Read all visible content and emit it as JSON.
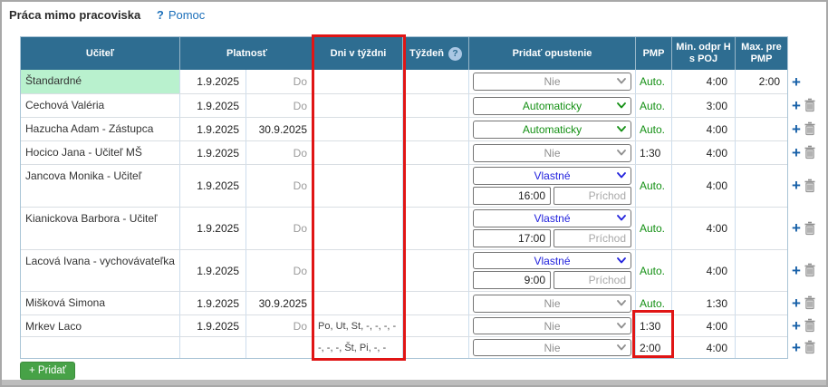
{
  "window": {
    "title": "Práca mimo pracoviska",
    "help_icon": "?",
    "help_link": "Pomoc"
  },
  "table": {
    "headers": {
      "teacher": "Učiteľ",
      "validity": "Platnosť",
      "days": "Dni v týždni",
      "week": "Týždeň",
      "week_help": "?",
      "leave": "Pridať opustenie",
      "pmp": "PMP",
      "min_h": "Min. odpr H s POJ",
      "max_pmp": "Max. pre PMP"
    },
    "rows": [
      {
        "teacher": "Štandardné",
        "highlight": true,
        "from": "1.9.2025",
        "to": "",
        "to_placeholder": "Do",
        "days": "",
        "week": "",
        "leave": {
          "value": "Nie",
          "color": "gray",
          "time": "",
          "time_placeholder": ""
        },
        "pmp": "Auto.",
        "pmp_auto": true,
        "min": "4:00",
        "max": "2:00",
        "can_add": true,
        "can_delete": false,
        "height": 26
      },
      {
        "teacher": "Cechová Valéria",
        "highlight": false,
        "from": "1.9.2025",
        "to": "",
        "to_placeholder": "Do",
        "days": "",
        "week": "",
        "leave": {
          "value": "Automaticky",
          "color": "green",
          "time": "",
          "time_placeholder": ""
        },
        "pmp": "Auto.",
        "pmp_auto": true,
        "min": "3:00",
        "max": "",
        "can_add": true,
        "can_delete": true,
        "height": 26
      },
      {
        "teacher": "Hazucha Adam - Zástupca",
        "highlight": false,
        "from": "1.9.2025",
        "to": "30.9.2025",
        "to_placeholder": "",
        "days": "",
        "week": "",
        "leave": {
          "value": "Automaticky",
          "color": "green",
          "time": "",
          "time_placeholder": ""
        },
        "pmp": "Auto.",
        "pmp_auto": true,
        "min": "4:00",
        "max": "",
        "can_add": true,
        "can_delete": true,
        "height": 26
      },
      {
        "teacher": "Hocico Jana - Učiteľ MŠ",
        "highlight": false,
        "from": "1.9.2025",
        "to": "",
        "to_placeholder": "Do",
        "days": "",
        "week": "",
        "leave": {
          "value": "Nie",
          "color": "gray",
          "time": "",
          "time_placeholder": ""
        },
        "pmp": "1:30",
        "pmp_auto": false,
        "min": "4:00",
        "max": "",
        "can_add": true,
        "can_delete": true,
        "height": 26
      },
      {
        "teacher": "Jancova Monika - Učiteľ",
        "highlight": false,
        "from": "1.9.2025",
        "to": "",
        "to_placeholder": "Do",
        "days": "",
        "week": "",
        "leave": {
          "value": "Vlastné",
          "color": "blue",
          "time": "16:00",
          "time_placeholder": "Príchod"
        },
        "pmp": "Auto.",
        "pmp_auto": true,
        "min": "4:00",
        "max": "",
        "can_add": true,
        "can_delete": true,
        "height": 47
      },
      {
        "teacher": "Kianickova Barbora - Učiteľ",
        "highlight": false,
        "from": "1.9.2025",
        "to": "",
        "to_placeholder": "Do",
        "days": "",
        "week": "",
        "leave": {
          "value": "Vlastné",
          "color": "blue",
          "time": "17:00",
          "time_placeholder": "Príchod"
        },
        "pmp": "Auto.",
        "pmp_auto": true,
        "min": "4:00",
        "max": "",
        "can_add": true,
        "can_delete": true,
        "height": 47
      },
      {
        "teacher": "Lacová Ivana - vychovávateľka",
        "highlight": false,
        "from": "1.9.2025",
        "to": "",
        "to_placeholder": "Do",
        "days": "",
        "week": "",
        "leave": {
          "value": "Vlastné",
          "color": "blue",
          "time": "9:00",
          "time_placeholder": "Príchod"
        },
        "pmp": "Auto.",
        "pmp_auto": true,
        "min": "4:00",
        "max": "",
        "can_add": true,
        "can_delete": true,
        "height": 46
      },
      {
        "teacher": "Mišková Simona",
        "highlight": false,
        "from": "1.9.2025",
        "to": "30.9.2025",
        "to_placeholder": "",
        "days": "",
        "week": "",
        "leave": {
          "value": "Nie",
          "color": "gray",
          "time": "",
          "time_placeholder": ""
        },
        "pmp": "Auto.",
        "pmp_auto": true,
        "min": "1:30",
        "max": "",
        "can_add": true,
        "can_delete": true,
        "height": 26
      },
      {
        "teacher": "Mrkev Laco",
        "highlight": false,
        "from": "1.9.2025",
        "to": "",
        "to_placeholder": "Do",
        "days": "Po, Ut, St, -, -, -, -",
        "week": "",
        "leave": {
          "value": "Nie",
          "color": "gray",
          "time": "",
          "time_placeholder": ""
        },
        "pmp": "1:30",
        "pmp_auto": false,
        "min": "4:00",
        "max": "",
        "can_add": true,
        "can_delete": true,
        "height": 24
      },
      {
        "teacher": "",
        "highlight": false,
        "from": "",
        "to": "",
        "to_placeholder": "",
        "days": "-, -, -, Št, Pi, -, -",
        "week": "",
        "leave": {
          "value": "Nie",
          "color": "gray",
          "time": "",
          "time_placeholder": ""
        },
        "pmp": "2:00",
        "pmp_auto": false,
        "min": "4:00",
        "max": "",
        "can_add": true,
        "can_delete": true,
        "height": 24
      }
    ],
    "add_button": "+ Pridať"
  },
  "colors": {
    "header_bg": "#2e6d91",
    "auto_green": "#149014",
    "custom_blue": "#2222dd",
    "disabled_gray": "#8f8f8f",
    "standard_row_highlight": "#b9f1ce",
    "annotation_red": "#e01515",
    "help_link_blue": "#1b6fba",
    "add_button_green": "#47a247"
  }
}
